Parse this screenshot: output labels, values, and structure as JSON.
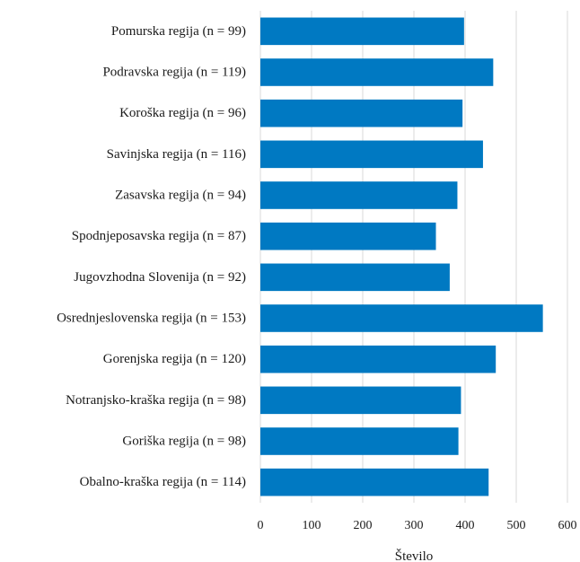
{
  "chart_data": {
    "type": "bar",
    "orientation": "horizontal",
    "categories": [
      "Pomurska regija (n = 99)",
      "Podravska regija (n = 119)",
      "Koroška regija (n = 96)",
      "Savinjska regija (n = 116)",
      "Zasavska regija (n = 94)",
      "Spodnjeposavska regija (n = 87)",
      "Jugovzhodna Slovenija (n = 92)",
      "Osrednjeslovenska regija (n = 153)",
      "Gorenjska regija (n = 120)",
      "Notranjsko-kraška regija (n = 98)",
      "Goriška regija (n = 98)",
      "Obalno-kraška regija (n = 114)"
    ],
    "values": [
      398,
      455,
      395,
      435,
      385,
      343,
      370,
      552,
      460,
      392,
      387,
      446
    ],
    "xlabel": "Število",
    "ylabel": "",
    "xlim": [
      0,
      600
    ],
    "xticks": [
      "0",
      "100",
      "200",
      "300",
      "400",
      "500",
      "600"
    ],
    "grid": true,
    "bar_color": "#0079c2"
  }
}
